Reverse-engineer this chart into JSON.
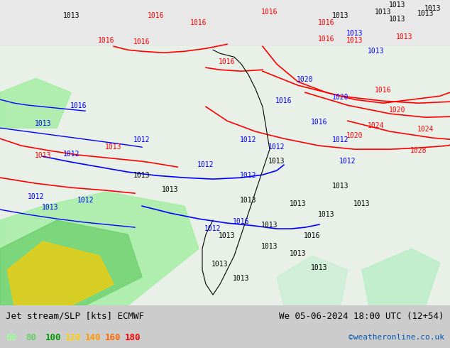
{
  "title_left": "Jet stream/SLP [kts] ECMWF",
  "title_right": "We 05-06-2024 18:00 UTC (12+54)",
  "credit": "©weatheronline.co.uk",
  "legend_values": [
    60,
    80,
    100,
    120,
    140,
    160,
    180
  ],
  "legend_colors": [
    "#99ff99",
    "#66cc66",
    "#009900",
    "#ffcc00",
    "#ff9900",
    "#ff6600",
    "#ff0000"
  ],
  "bg_color": "#e8e8e8",
  "map_bg": "#f0f0f0",
  "bottom_bar_color": "#d0d0d0",
  "font_color_left": "#000000",
  "font_color_right": "#000000",
  "credit_color": "#0055aa"
}
